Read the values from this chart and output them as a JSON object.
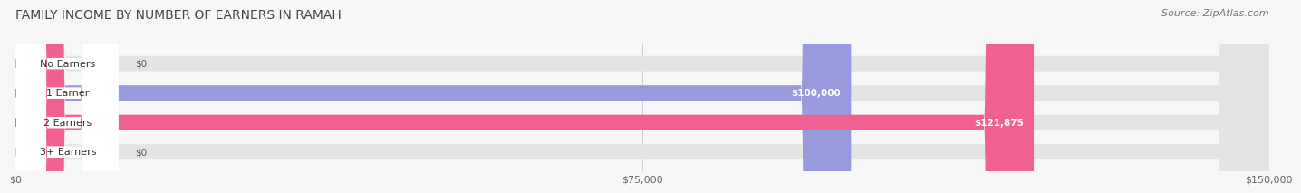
{
  "title": "FAMILY INCOME BY NUMBER OF EARNERS IN RAMAH",
  "source": "Source: ZipAtlas.com",
  "categories": [
    "No Earners",
    "1 Earner",
    "2 Earners",
    "3+ Earners"
  ],
  "values": [
    0,
    100000,
    121875,
    0
  ],
  "bar_colors": [
    "#7dd4d4",
    "#9999dd",
    "#f06090",
    "#f0c896"
  ],
  "value_labels": [
    "$0",
    "$100,000",
    "$121,875",
    "$0"
  ],
  "xlim": [
    0,
    150000
  ],
  "xticks": [
    0,
    75000,
    150000
  ],
  "xticklabels": [
    "$0",
    "$75,000",
    "$150,000"
  ],
  "background_color": "#f7f7f7",
  "bar_background": "#e4e4e4",
  "title_fontsize": 10,
  "source_fontsize": 8,
  "bar_height": 0.52
}
